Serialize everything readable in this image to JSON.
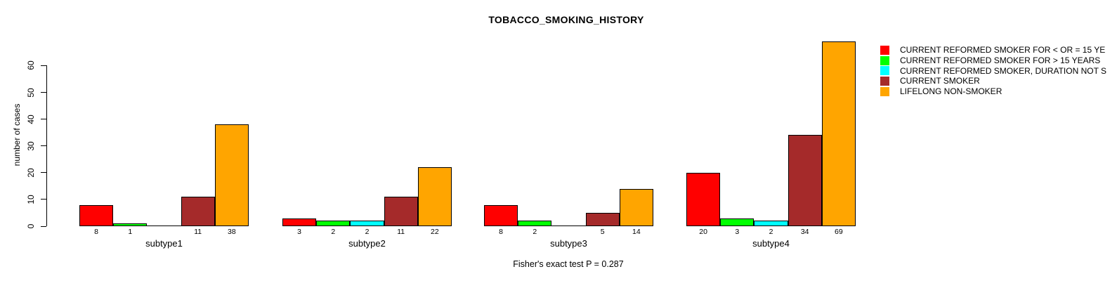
{
  "chart_data": {
    "type": "bar",
    "title": "TOBACCO_SMOKING_HISTORY",
    "ylabel": "number of cases",
    "xlabel": "",
    "ylim": [
      0,
      60
    ],
    "yticks": [
      0,
      10,
      20,
      30,
      40,
      50,
      60
    ],
    "grid": false,
    "legend_position": "top-right",
    "bar_border_color": "#000000",
    "categories": [
      "subtype1",
      "subtype2",
      "subtype3",
      "subtype4"
    ],
    "series": [
      {
        "name": "CURRENT REFORMED SMOKER FOR < OR = 15 YE",
        "color": "#FF0000",
        "values": [
          8,
          3,
          8,
          20
        ]
      },
      {
        "name": "CURRENT REFORMED SMOKER FOR > 15 YEARS",
        "color": "#00FF00",
        "values": [
          1,
          2,
          2,
          3
        ]
      },
      {
        "name": "CURRENT REFORMED SMOKER, DURATION NOT S",
        "color": "#00FFFF",
        "values": [
          0,
          2,
          0,
          2
        ]
      },
      {
        "name": "CURRENT SMOKER",
        "color": "#A52A2A",
        "values": [
          11,
          11,
          5,
          34
        ]
      },
      {
        "name": "LIFELONG NON-SMOKER",
        "color": "#FFA500",
        "values": [
          38,
          22,
          14,
          69
        ]
      }
    ],
    "annotation": "Fisher's exact test P = 0.287"
  }
}
